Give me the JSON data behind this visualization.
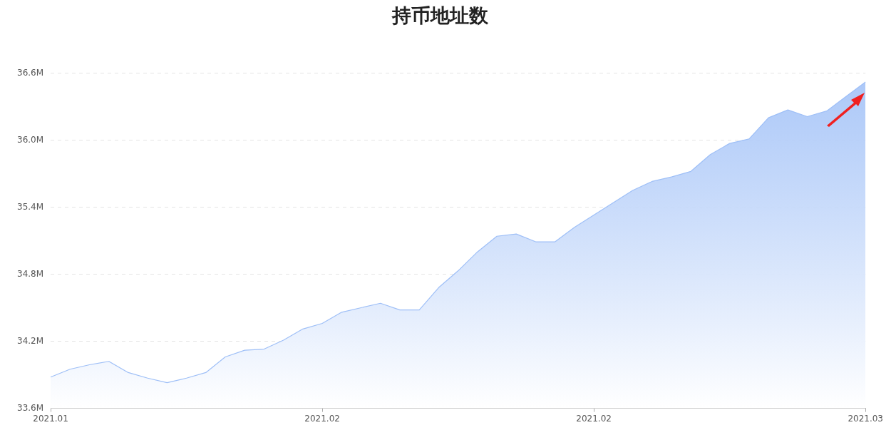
{
  "chart_data": {
    "type": "area",
    "title": "持币地址数",
    "categories": [
      "2021.01",
      null,
      null,
      null,
      null,
      null,
      null,
      null,
      null,
      null,
      null,
      null,
      null,
      null,
      "2021.02",
      null,
      null,
      null,
      null,
      null,
      null,
      null,
      null,
      null,
      null,
      null,
      null,
      null,
      "2021.02",
      null,
      null,
      null,
      null,
      null,
      null,
      null,
      null,
      null,
      null,
      null,
      null,
      null,
      "2021.03"
    ],
    "series": [
      {
        "color": "#9ebff7",
        "values": [
          33.88,
          33.95,
          33.99,
          34.02,
          33.92,
          33.87,
          33.83,
          33.87,
          33.92,
          34.06,
          34.12,
          34.13,
          34.21,
          34.31,
          34.36,
          34.46,
          34.5,
          34.54,
          34.48,
          34.48,
          34.68,
          34.83,
          35.0,
          35.14,
          35.16,
          35.09,
          35.09,
          35.22,
          35.33,
          35.44,
          35.55,
          35.63,
          35.67,
          35.72,
          35.87,
          35.97,
          36.01,
          36.2,
          36.27,
          36.21,
          36.26,
          36.39,
          36.52
        ]
      }
    ],
    "ylim": [
      33.6,
      36.6
    ],
    "yticks": [
      {
        "value": 33.6,
        "label": "33.6M"
      },
      {
        "value": 34.2,
        "label": "34.2M"
      },
      {
        "value": 34.8,
        "label": "34.8M"
      },
      {
        "value": 35.4,
        "label": "35.4M"
      },
      {
        "value": 36.0,
        "label": "36.0M"
      },
      {
        "value": 36.6,
        "label": "36.6M"
      }
    ],
    "grid": "y",
    "marker": "none",
    "legend": false
  }
}
